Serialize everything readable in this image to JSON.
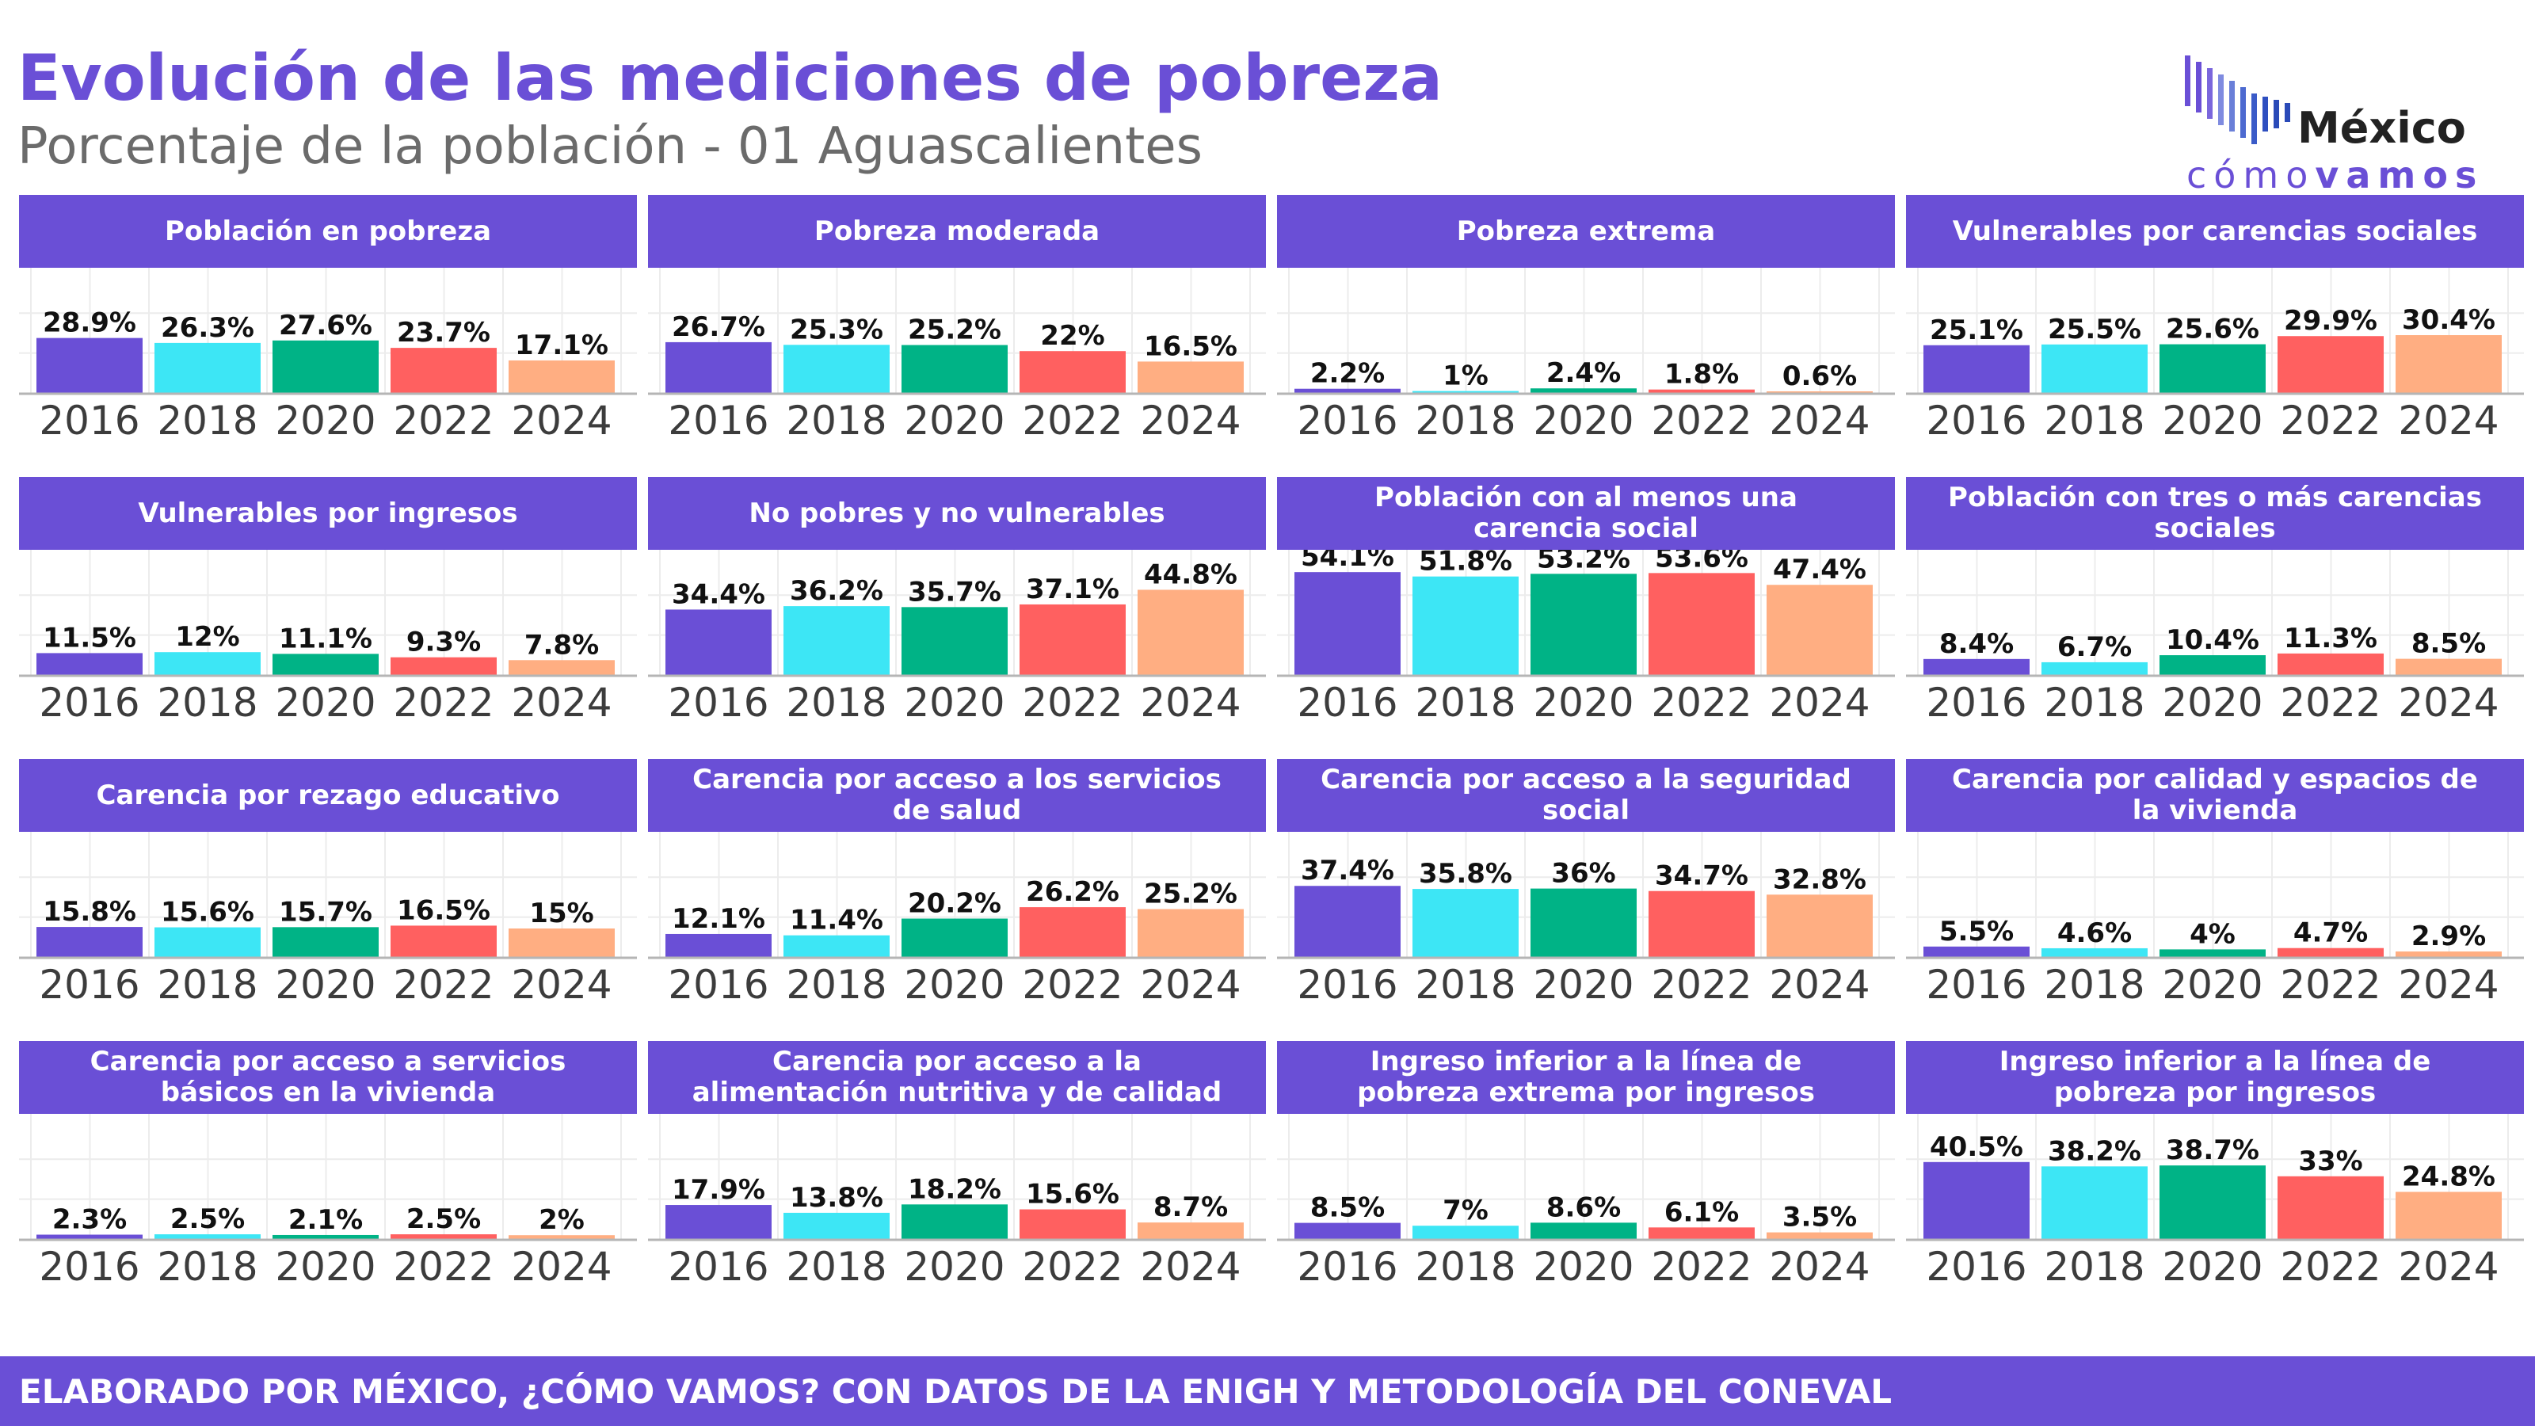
{
  "title": "Evolución de las mediciones de pobreza",
  "subtitle": "Porcentaje de la población - 01 Aguascalientes",
  "logo": {
    "name": "México",
    "tag_light": "cómo",
    "tag_bold": "vamos"
  },
  "footer": "ELABORADO POR MÉXICO, ¿CÓMO VAMOS? CON DATOS DE LA ENIGH Y METODOLOGÍA DEL CONEVAL",
  "colors": {
    "accent": "#6a4fd6",
    "series": [
      "#6a4fd6",
      "#3de6f5",
      "#00b386",
      "#ff6060",
      "#ffae82"
    ]
  },
  "chart_data": [
    {
      "type": "bar",
      "title": "Población en pobreza",
      "categories": [
        "2016",
        "2018",
        "2020",
        "2022",
        "2024"
      ],
      "values": [
        28.9,
        26.3,
        27.6,
        23.7,
        17.1
      ],
      "labels": [
        "28.9%",
        "26.3%",
        "27.6%",
        "23.7%",
        "17.1%"
      ],
      "ylim": [
        0,
        60
      ],
      "grid": true
    },
    {
      "type": "bar",
      "title": "Pobreza moderada",
      "categories": [
        "2016",
        "2018",
        "2020",
        "2022",
        "2024"
      ],
      "values": [
        26.7,
        25.3,
        25.2,
        22,
        16.5
      ],
      "labels": [
        "26.7%",
        "25.3%",
        "25.2%",
        "22%",
        "16.5%"
      ],
      "ylim": [
        0,
        60
      ],
      "grid": true
    },
    {
      "type": "bar",
      "title": "Pobreza extrema",
      "categories": [
        "2016",
        "2018",
        "2020",
        "2022",
        "2024"
      ],
      "values": [
        2.2,
        1,
        2.4,
        1.8,
        0.6
      ],
      "labels": [
        "2.2%",
        "1%",
        "2.4%",
        "1.8%",
        "0.6%"
      ],
      "ylim": [
        0,
        60
      ],
      "grid": true
    },
    {
      "type": "bar",
      "title": "Vulnerables por carencias sociales",
      "categories": [
        "2016",
        "2018",
        "2020",
        "2022",
        "2024"
      ],
      "values": [
        25.1,
        25.5,
        25.6,
        29.9,
        30.4
      ],
      "labels": [
        "25.1%",
        "25.5%",
        "25.6%",
        "29.9%",
        "30.4%"
      ],
      "ylim": [
        0,
        60
      ],
      "grid": true
    },
    {
      "type": "bar",
      "title": "Vulnerables por ingresos",
      "categories": [
        "2016",
        "2018",
        "2020",
        "2022",
        "2024"
      ],
      "values": [
        11.5,
        12,
        11.1,
        9.3,
        7.8
      ],
      "labels": [
        "11.5%",
        "12%",
        "11.1%",
        "9.3%",
        "7.8%"
      ],
      "ylim": [
        0,
        60
      ],
      "grid": true
    },
    {
      "type": "bar",
      "title": "No pobres y no vulnerables",
      "categories": [
        "2016",
        "2018",
        "2020",
        "2022",
        "2024"
      ],
      "values": [
        34.4,
        36.2,
        35.7,
        37.1,
        44.8
      ],
      "labels": [
        "34.4%",
        "36.2%",
        "35.7%",
        "37.1%",
        "44.8%"
      ],
      "ylim": [
        0,
        60
      ],
      "grid": true
    },
    {
      "type": "bar",
      "title": "Población con al menos una carencia social",
      "categories": [
        "2016",
        "2018",
        "2020",
        "2022",
        "2024"
      ],
      "values": [
        54.1,
        51.8,
        53.2,
        53.6,
        47.4
      ],
      "labels": [
        "54.1%",
        "51.8%",
        "53.2%",
        "53.6%",
        "47.4%"
      ],
      "ylim": [
        0,
        60
      ],
      "grid": true
    },
    {
      "type": "bar",
      "title": "Población con tres o más carencias sociales",
      "categories": [
        "2016",
        "2018",
        "2020",
        "2022",
        "2024"
      ],
      "values": [
        8.4,
        6.7,
        10.4,
        11.3,
        8.5
      ],
      "labels": [
        "8.4%",
        "6.7%",
        "10.4%",
        "11.3%",
        "8.5%"
      ],
      "ylim": [
        0,
        60
      ],
      "grid": true
    },
    {
      "type": "bar",
      "title": "Carencia por rezago educativo",
      "categories": [
        "2016",
        "2018",
        "2020",
        "2022",
        "2024"
      ],
      "values": [
        15.8,
        15.6,
        15.7,
        16.5,
        15
      ],
      "labels": [
        "15.8%",
        "15.6%",
        "15.7%",
        "16.5%",
        "15%"
      ],
      "ylim": [
        0,
        60
      ],
      "grid": true
    },
    {
      "type": "bar",
      "title": "Carencia por acceso a los servicios de salud",
      "categories": [
        "2016",
        "2018",
        "2020",
        "2022",
        "2024"
      ],
      "values": [
        12.1,
        11.4,
        20.2,
        26.2,
        25.2
      ],
      "labels": [
        "12.1%",
        "11.4%",
        "20.2%",
        "26.2%",
        "25.2%"
      ],
      "ylim": [
        0,
        60
      ],
      "grid": true
    },
    {
      "type": "bar",
      "title": "Carencia por acceso a la seguridad social",
      "categories": [
        "2016",
        "2018",
        "2020",
        "2022",
        "2024"
      ],
      "values": [
        37.4,
        35.8,
        36,
        34.7,
        32.8
      ],
      "labels": [
        "37.4%",
        "35.8%",
        "36%",
        "34.7%",
        "32.8%"
      ],
      "ylim": [
        0,
        60
      ],
      "grid": true
    },
    {
      "type": "bar",
      "title": "Carencia por calidad y espacios de la vivienda",
      "categories": [
        "2016",
        "2018",
        "2020",
        "2022",
        "2024"
      ],
      "values": [
        5.5,
        4.6,
        4,
        4.7,
        2.9
      ],
      "labels": [
        "5.5%",
        "4.6%",
        "4%",
        "4.7%",
        "2.9%"
      ],
      "ylim": [
        0,
        60
      ],
      "grid": true
    },
    {
      "type": "bar",
      "title": "Carencia por acceso a servicios básicos en la vivienda",
      "categories": [
        "2016",
        "2018",
        "2020",
        "2022",
        "2024"
      ],
      "values": [
        2.3,
        2.5,
        2.1,
        2.5,
        2
      ],
      "labels": [
        "2.3%",
        "2.5%",
        "2.1%",
        "2.5%",
        "2%"
      ],
      "ylim": [
        0,
        60
      ],
      "grid": true
    },
    {
      "type": "bar",
      "title": "Carencia por acceso a la alimentación nutritiva y de calidad",
      "categories": [
        "2016",
        "2018",
        "2020",
        "2022",
        "2024"
      ],
      "values": [
        17.9,
        13.8,
        18.2,
        15.6,
        8.7
      ],
      "labels": [
        "17.9%",
        "13.8%",
        "18.2%",
        "15.6%",
        "8.7%"
      ],
      "ylim": [
        0,
        60
      ],
      "grid": true
    },
    {
      "type": "bar",
      "title": "Ingreso inferior a la línea de pobreza extrema por ingresos",
      "categories": [
        "2016",
        "2018",
        "2020",
        "2022",
        "2024"
      ],
      "values": [
        8.5,
        7,
        8.6,
        6.1,
        3.5
      ],
      "labels": [
        "8.5%",
        "7%",
        "8.6%",
        "6.1%",
        "3.5%"
      ],
      "ylim": [
        0,
        60
      ],
      "grid": true
    },
    {
      "type": "bar",
      "title": "Ingreso inferior a la línea de pobreza por ingresos",
      "categories": [
        "2016",
        "2018",
        "2020",
        "2022",
        "2024"
      ],
      "values": [
        40.5,
        38.2,
        38.7,
        33,
        24.8
      ],
      "labels": [
        "40.5%",
        "38.2%",
        "38.7%",
        "33%",
        "24.8%"
      ],
      "ylim": [
        0,
        60
      ],
      "grid": true
    }
  ]
}
